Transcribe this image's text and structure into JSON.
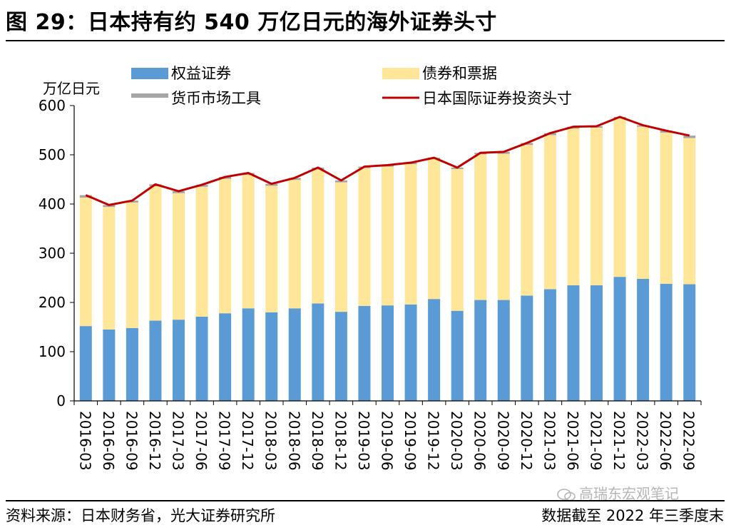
{
  "page": {
    "title": "图 29：日本持有约 540 万亿日元的海外证券头寸",
    "source": "资料来源：日本财务省，光大证券研究所",
    "as_of": "数据截至 2022 年三季度末",
    "watermark": "高瑞东宏观笔记"
  },
  "colors": {
    "equity": "#5b9bd5",
    "bonds": "#ffe699",
    "money_market": "#a5a5a5",
    "total_line": "#c00000"
  },
  "chart_data": {
    "type": "bar",
    "stacked": true,
    "title": "",
    "ylabel": "万亿日元",
    "xlabel": "",
    "ylim": [
      0,
      600
    ],
    "yticks": [
      0,
      100,
      200,
      300,
      400,
      500,
      600
    ],
    "legend_position": "top",
    "categories": [
      "2016-03",
      "2016-06",
      "2016-09",
      "2016-12",
      "2017-03",
      "2017-06",
      "2017-09",
      "2017-12",
      "2018-03",
      "2018-06",
      "2018-09",
      "2018-12",
      "2019-03",
      "2019-06",
      "2019-09",
      "2019-12",
      "2020-03",
      "2020-06",
      "2020-09",
      "2020-12",
      "2021-03",
      "2021-06",
      "2021-09",
      "2021-12",
      "2022-03",
      "2022-06",
      "2022-09"
    ],
    "series": [
      {
        "name": "权益证券",
        "type": "bar",
        "color_key": "equity",
        "values": [
          152,
          145,
          148,
          163,
          165,
          171,
          178,
          188,
          180,
          188,
          198,
          181,
          193,
          194,
          196,
          207,
          183,
          205,
          205,
          214,
          227,
          235,
          235,
          252,
          248,
          238,
          237
        ]
      },
      {
        "name": "债券和票据",
        "type": "bar",
        "color_key": "bonds",
        "values": [
          261,
          249,
          255,
          273,
          257,
          264,
          273,
          271,
          257,
          261,
          272,
          263,
          280,
          282,
          285,
          284,
          288,
          296,
          297,
          306,
          313,
          318,
          320,
          322,
          309,
          307,
          297
        ]
      },
      {
        "name": "货币市场工具",
        "type": "bar",
        "color_key": "money_market",
        "values": [
          5,
          4,
          4,
          4,
          4,
          4,
          4,
          4,
          4,
          4,
          4,
          4,
          3,
          3,
          3,
          3,
          3,
          3,
          4,
          4,
          4,
          4,
          3,
          3,
          3,
          4,
          5
        ]
      },
      {
        "name": "日本国际证券投资头寸",
        "type": "line",
        "color_key": "total_line",
        "values": [
          418,
          398,
          407,
          440,
          426,
          439,
          455,
          463,
          441,
          453,
          474,
          448,
          476,
          479,
          484,
          494,
          474,
          504,
          506,
          524,
          544,
          557,
          558,
          577,
          560,
          549,
          539
        ]
      }
    ]
  }
}
